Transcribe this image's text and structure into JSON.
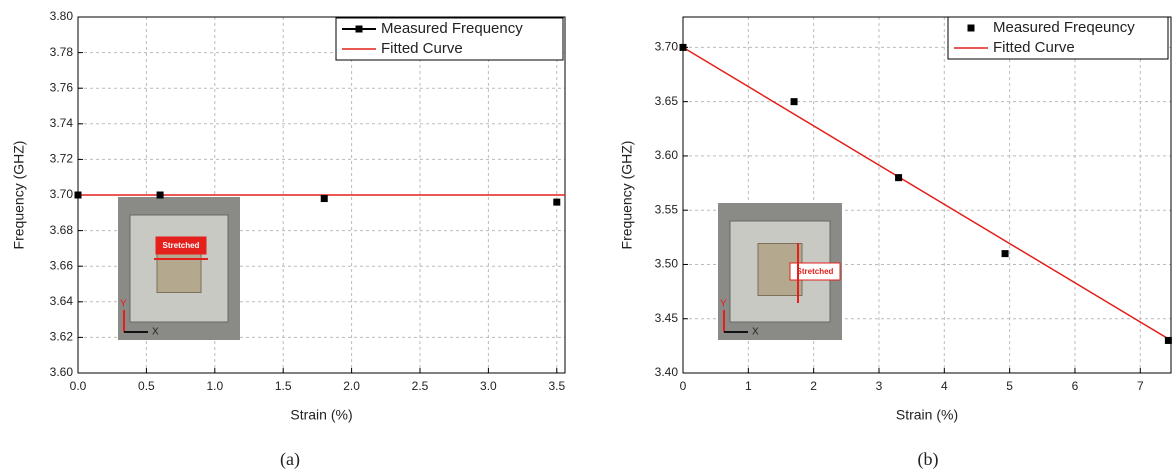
{
  "chart_data": [
    {
      "type": "scatter-fit",
      "x_label": "Strain (%)",
      "y_label": "Frequency (GHZ)",
      "caption": "(a)",
      "xlim": [
        0,
        3.56
      ],
      "ylim": [
        3.6,
        3.8
      ],
      "xticks": [
        {
          "value": 0,
          "label": "0.0"
        },
        0.5,
        {
          "value": 1,
          "label": "1.0"
        },
        1.5,
        {
          "value": 2,
          "label": "2.0"
        },
        2.5,
        {
          "value": 3,
          "label": "3.0"
        },
        3.5
      ],
      "yticks": [
        {
          "value": 3.6,
          "label": "3.60"
        },
        3.62,
        3.64,
        3.66,
        3.68,
        {
          "value": 3.7,
          "label": "3.70"
        },
        3.72,
        3.74,
        3.76,
        3.78,
        {
          "value": 3.8,
          "label": "3.80"
        }
      ],
      "grid": true,
      "series": [
        {
          "name": "Measured Frequency",
          "color": "#000000",
          "marker": "square",
          "legend_line": true,
          "x": [
            0,
            0.6,
            1.8,
            3.5
          ],
          "values": [
            3.7,
            3.7,
            3.698,
            3.696
          ]
        },
        {
          "name": "Fitted Curve",
          "color": "#e3201b",
          "marker": "line",
          "x": [
            0,
            3.56
          ],
          "values": [
            3.7,
            3.7
          ]
        }
      ],
      "annotations": [
        "Stretched",
        "X",
        "Y"
      ]
    },
    {
      "type": "scatter-fit",
      "x_label": "Strain (%)",
      "y_label": "Frequency (GHZ)",
      "caption": "(b)",
      "xlim": [
        0,
        7.47
      ],
      "ylim": [
        3.4,
        3.728
      ],
      "xticks": [
        0,
        1,
        2,
        3,
        4,
        5,
        6,
        7
      ],
      "yticks": [
        {
          "value": 3.4,
          "label": "3.40"
        },
        3.45,
        {
          "value": 3.5,
          "label": "3.50"
        },
        3.55,
        {
          "value": 3.6,
          "label": "3.60"
        },
        3.65,
        {
          "value": 3.7,
          "label": "3.70"
        }
      ],
      "grid": true,
      "series": [
        {
          "name": "Measured Freqeuncy",
          "color": "#000000",
          "marker": "square",
          "legend_line": false,
          "x": [
            0,
            1.7,
            3.3,
            4.93,
            7.43
          ],
          "values": [
            3.7,
            3.65,
            3.58,
            3.51,
            3.43
          ]
        },
        {
          "name": "Fitted Curve",
          "color": "#e3201b",
          "marker": "line",
          "x": [
            0,
            7.47
          ],
          "values": [
            3.7,
            3.43
          ]
        }
      ],
      "annotations": [
        "Stretched",
        "X",
        "Y"
      ]
    }
  ]
}
